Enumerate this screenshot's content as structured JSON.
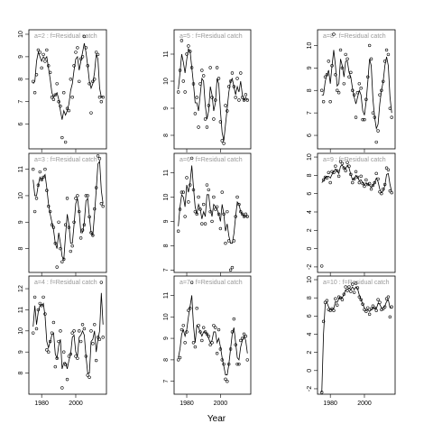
{
  "chart_data": {
    "type": "scatter",
    "xlabel": "Year",
    "x": [
      1975,
      1976,
      1977,
      1978,
      1979,
      1980,
      1981,
      1982,
      1983,
      1984,
      1985,
      1986,
      1987,
      1988,
      1989,
      1990,
      1991,
      1992,
      1993,
      1994,
      1995,
      1996,
      1997,
      1998,
      1999,
      2000,
      2001,
      2002,
      2003,
      2004,
      2005,
      2006,
      2007,
      2008,
      2009,
      2010,
      2011,
      2012,
      2013,
      2014,
      2015,
      2016
    ],
    "xlim": [
      1972.5,
      2018
    ],
    "xticks": [
      1980,
      2000
    ],
    "color": "#000000",
    "title_color": "#999999",
    "panels": [
      {
        "title": "a=2 : f=Residual catch",
        "ylim": [
          4.9,
          10.2
        ],
        "yticks": [
          6,
          7,
          8,
          9,
          10
        ],
        "points": [
          7.9,
          7.4,
          8.2,
          9.3,
          9.2,
          8.5,
          9.1,
          8.8,
          9.3,
          8.6,
          8.3,
          7.2,
          7.1,
          7.3,
          7.8,
          7.0,
          6.8,
          5.4,
          7.4,
          5.2,
          6.7,
          6.6,
          8.0,
          7.2,
          8.6,
          9.2,
          9.4,
          7.9,
          8.9,
          9.0,
          9.9,
          9.4,
          8.6,
          7.8,
          6.5,
          7.9,
          8.0,
          9.2,
          9.1,
          7.2,
          7.0,
          7.2
        ],
        "fit": [
          7.8,
          7.9,
          8.8,
          9.2,
          9.0,
          8.8,
          9.0,
          8.9,
          9.0,
          8.5,
          8.0,
          7.4,
          7.2,
          7.3,
          7.4,
          7.1,
          6.6,
          6.2,
          6.6,
          6.4,
          6.6,
          6.9,
          7.5,
          7.8,
          8.4,
          8.9,
          9.0,
          8.4,
          8.8,
          9.2,
          9.6,
          9.2,
          8.6,
          7.9,
          7.6,
          7.8,
          8.3,
          9.1,
          8.9,
          7.6,
          7.2,
          7.2
        ]
      },
      {
        "title": "a=3 : f=Residual catch",
        "ylim": [
          7.1,
          11.6
        ],
        "yticks": [
          8,
          9,
          10,
          11
        ],
        "points": [
          11.0,
          9.4,
          9.9,
          10.4,
          10.9,
          10.6,
          10.7,
          11.0,
          10.2,
          9.6,
          9.4,
          8.9,
          8.8,
          8.2,
          7.3,
          9.0,
          8.0,
          7.5,
          7.6,
          8.9,
          9.9,
          8.8,
          7.9,
          8.1,
          9.0,
          9.9,
          10.0,
          9.4,
          8.4,
          8.7,
          8.9,
          10.0,
          10.0,
          9.2,
          8.6,
          8.5,
          9.5,
          10.3,
          11.5,
          11.4,
          9.7,
          9.6
        ],
        "fit": [
          10.6,
          10.0,
          10.0,
          10.4,
          10.7,
          10.6,
          10.7,
          10.8,
          10.3,
          9.7,
          9.3,
          9.0,
          8.7,
          8.2,
          8.0,
          8.6,
          8.2,
          7.7,
          7.6,
          8.5,
          9.3,
          8.9,
          8.2,
          8.2,
          8.9,
          9.7,
          9.9,
          9.4,
          8.6,
          8.6,
          9.0,
          9.8,
          9.9,
          9.2,
          8.6,
          8.5,
          9.3,
          10.2,
          11.2,
          11.3,
          10.2,
          9.7
        ]
      },
      {
        "title": "a=4 : f=Residual catch",
        "ylim": [
          7.0,
          12.6
        ],
        "yticks": [
          8,
          9,
          10,
          11,
          12
        ],
        "points": [
          9.9,
          11.6,
          10.1,
          11.0,
          11.3,
          11.2,
          11.6,
          10.8,
          9.1,
          9.0,
          9.5,
          9.9,
          10.4,
          8.3,
          8.7,
          9.5,
          10.0,
          7.3,
          9.0,
          8.4,
          7.7,
          8.8,
          8.9,
          9.9,
          10.0,
          8.8,
          8.7,
          10.0,
          9.5,
          10.3,
          10.1,
          8.8,
          7.9,
          7.8,
          10.0,
          9.4,
          10.3,
          8.6,
          9.7,
          9.6,
          12.3,
          9.7
        ],
        "fit": [
          10.2,
          11.2,
          10.3,
          10.9,
          11.2,
          11.2,
          11.3,
          10.7,
          9.5,
          9.2,
          9.5,
          9.8,
          9.9,
          8.9,
          8.7,
          9.3,
          9.6,
          8.2,
          8.5,
          8.5,
          8.2,
          8.6,
          8.9,
          9.7,
          9.8,
          9.0,
          8.8,
          9.7,
          9.8,
          10.0,
          9.8,
          8.8,
          8.0,
          8.0,
          9.5,
          9.6,
          10.0,
          9.0,
          9.6,
          10.0,
          11.8,
          10.3
        ]
      },
      {
        "title": "a=5 : f=Residual catch",
        "ylim": [
          7.5,
          11.9
        ],
        "yticks": [
          8,
          9,
          10,
          11
        ],
        "points": [
          9.6,
          10.4,
          11.5,
          10.0,
          9.6,
          11.0,
          11.3,
          11.1,
          10.5,
          9.9,
          8.8,
          9.4,
          8.3,
          9.9,
          10.4,
          10.2,
          8.6,
          8.3,
          9.1,
          10.5,
          9.4,
          8.6,
          9.3,
          10.5,
          10.1,
          8.5,
          7.8,
          7.7,
          9.1,
          8.9,
          9.8,
          10.0,
          10.3,
          9.8,
          9.4,
          10.1,
          9.3,
          10.3,
          9.4,
          9.3,
          9.5,
          9.3
        ],
        "fit": [
          9.7,
          10.3,
          11.0,
          10.7,
          10.3,
          10.8,
          11.2,
          11.1,
          10.5,
          9.9,
          9.2,
          9.2,
          8.9,
          9.5,
          10.1,
          10.0,
          9.1,
          8.6,
          8.9,
          9.8,
          9.5,
          8.9,
          9.2,
          10.1,
          9.9,
          8.9,
          8.1,
          7.8,
          8.4,
          9.0,
          9.6,
          10.0,
          10.1,
          9.8,
          9.5,
          9.8,
          9.6,
          10.0,
          9.5,
          9.3,
          9.4,
          9.3
        ]
      },
      {
        "title": "a=6 : f=Residual catch",
        "ylim": [
          6.9,
          11.8
        ],
        "yticks": [
          7,
          8,
          9,
          10,
          11
        ],
        "points": [
          8.6,
          9.5,
          10.2,
          10.2,
          9.2,
          10.8,
          9.8,
          10.5,
          11.6,
          10.3,
          9.4,
          9.3,
          10.0,
          9.5,
          8.9,
          9.7,
          8.9,
          10.5,
          10.3,
          9.4,
          9.0,
          10.0,
          9.5,
          9.6,
          9.3,
          8.7,
          10.2,
          9.3,
          8.1,
          9.4,
          8.2,
          7.0,
          7.1,
          8.2,
          9.2,
          10.0,
          9.7,
          9.4,
          9.3,
          9.2,
          9.3,
          9.2
        ],
        "fit": [
          8.8,
          9.6,
          10.1,
          10.0,
          9.6,
          10.5,
          10.2,
          10.6,
          11.3,
          10.4,
          9.6,
          9.3,
          9.7,
          9.5,
          9.1,
          9.4,
          9.2,
          10.1,
          10.1,
          9.5,
          9.2,
          9.7,
          9.6,
          9.5,
          9.3,
          9.0,
          9.7,
          9.3,
          8.6,
          8.9,
          8.4,
          8.1,
          8.1,
          8.5,
          9.2,
          9.8,
          9.7,
          9.4,
          9.3,
          9.2,
          9.2,
          9.2
        ]
      },
      {
        "title": "a=7 : f=Residual catch",
        "ylim": [
          6.4,
          11.9
        ],
        "yticks": [
          7,
          8,
          9,
          10,
          11
        ],
        "points": [
          8.0,
          8.1,
          9.4,
          9.6,
          8.8,
          9.3,
          10.3,
          10.4,
          11.6,
          8.8,
          8.6,
          10.4,
          9.6,
          9.3,
          8.9,
          9.5,
          9.3,
          9.2,
          9.1,
          8.7,
          8.8,
          9.6,
          9.5,
          8.3,
          9.4,
          8.5,
          8.0,
          7.8,
          7.1,
          7.0,
          7.8,
          8.5,
          9.3,
          9.9,
          8.7,
          7.8,
          7.8,
          8.9,
          9.0,
          9.2,
          9.1,
          8.0
        ],
        "fit": [
          8.1,
          8.5,
          9.2,
          9.4,
          9.1,
          9.4,
          10.0,
          10.5,
          11.0,
          9.6,
          8.8,
          9.6,
          9.5,
          9.3,
          9.1,
          9.3,
          9.3,
          9.2,
          9.0,
          8.8,
          8.9,
          9.3,
          9.3,
          8.8,
          9.0,
          8.6,
          8.1,
          7.7,
          7.3,
          7.3,
          7.8,
          8.5,
          9.2,
          9.5,
          8.8,
          8.1,
          8.0,
          8.6,
          8.9,
          9.1,
          8.9,
          8.3
        ]
      },
      {
        "title": "a=8 : f=Residual catch",
        "ylim": [
          5.4,
          10.7
        ],
        "yticks": [
          6,
          7,
          8,
          9,
          10
        ],
        "points": [
          8.0,
          7.5,
          8.6,
          8.7,
          9.3,
          7.5,
          9.1,
          10.5,
          8.7,
          8.0,
          7.9,
          9.8,
          9.0,
          8.3,
          9.6,
          9.4,
          8.6,
          8.8,
          8.0,
          7.8,
          6.8,
          7.9,
          8.3,
          8.1,
          6.7,
          6.7,
          7.6,
          8.6,
          10.0,
          9.4,
          7.0,
          6.8,
          5.7,
          6.2,
          7.8,
          8.0,
          8.4,
          9.3,
          9.8,
          9.6,
          7.2,
          6.8
        ],
        "fit": [
          7.8,
          7.8,
          8.4,
          8.7,
          8.9,
          8.3,
          9.1,
          9.8,
          9.1,
          8.2,
          8.3,
          9.4,
          9.1,
          8.6,
          9.3,
          9.3,
          8.8,
          8.6,
          8.1,
          7.7,
          7.4,
          7.7,
          8.0,
          7.8,
          7.1,
          6.9,
          7.5,
          8.4,
          9.4,
          9.1,
          7.6,
          6.8,
          6.3,
          6.5,
          7.4,
          8.0,
          8.4,
          9.1,
          9.5,
          9.1,
          7.7,
          7.0
        ]
      },
      {
        "title": "a=9 : f=Residual catch",
        "ylim": [
          -2.6,
          10.4
        ],
        "yticks": [
          -2,
          0,
          2,
          4,
          6,
          8,
          10
        ],
        "points": [
          -1.9,
          7.5,
          7.8,
          7.7,
          8.3,
          7.2,
          8.4,
          8.3,
          9.0,
          8.5,
          7.9,
          9.5,
          9.3,
          8.8,
          8.5,
          9.4,
          9.0,
          8.1,
          7.2,
          7.6,
          8.4,
          7.8,
          7.2,
          7.9,
          7.1,
          6.8,
          7.5,
          7.0,
          7.1,
          6.5,
          6.9,
          7.2,
          8.2,
          7.6,
          6.2,
          6.0,
          6.5,
          7.0,
          8.8,
          8.6,
          6.3,
          6.1
        ],
        "fit": [
          7.2,
          7.4,
          7.8,
          7.9,
          7.9,
          7.7,
          8.1,
          8.4,
          8.7,
          8.5,
          8.2,
          9.0,
          9.1,
          8.8,
          8.7,
          9.1,
          8.8,
          8.1,
          7.5,
          7.6,
          8.0,
          7.8,
          7.4,
          7.5,
          7.2,
          6.9,
          7.2,
          7.0,
          6.9,
          6.7,
          6.9,
          7.2,
          7.7,
          7.3,
          6.5,
          6.1,
          6.3,
          6.9,
          8.1,
          8.2,
          7.0,
          6.2
        ]
      },
      {
        "title": "a=10 : f=Residual catch",
        "ylim": [
          -2.6,
          10.4
        ],
        "yticks": [
          -2,
          0,
          2,
          4,
          6,
          8,
          10
        ],
        "points": [
          -2.4,
          5.4,
          7.5,
          7.7,
          6.7,
          6.6,
          6.8,
          6.6,
          7.9,
          7.2,
          8.1,
          8.0,
          7.8,
          8.4,
          9.2,
          8.8,
          9.2,
          8.7,
          9.5,
          8.6,
          9.6,
          9.1,
          8.1,
          7.8,
          7.3,
          6.7,
          6.5,
          6.9,
          6.2,
          6.8,
          7.1,
          6.9,
          6.6,
          7.8,
          7.5,
          6.7,
          6.8,
          7.0,
          7.9,
          8.1,
          5.9,
          7.0
        ],
        "fit": [
          -2.4,
          4.0,
          7.3,
          7.5,
          7.0,
          6.7,
          6.8,
          6.8,
          7.6,
          7.5,
          7.9,
          8.0,
          8.0,
          8.4,
          8.9,
          8.9,
          9.1,
          8.9,
          9.2,
          8.9,
          9.2,
          9.0,
          8.3,
          7.8,
          7.3,
          6.9,
          6.6,
          6.7,
          6.5,
          6.7,
          6.9,
          6.9,
          6.8,
          7.4,
          7.3,
          6.9,
          6.9,
          7.1,
          7.6,
          7.8,
          6.9,
          6.9
        ]
      }
    ]
  }
}
